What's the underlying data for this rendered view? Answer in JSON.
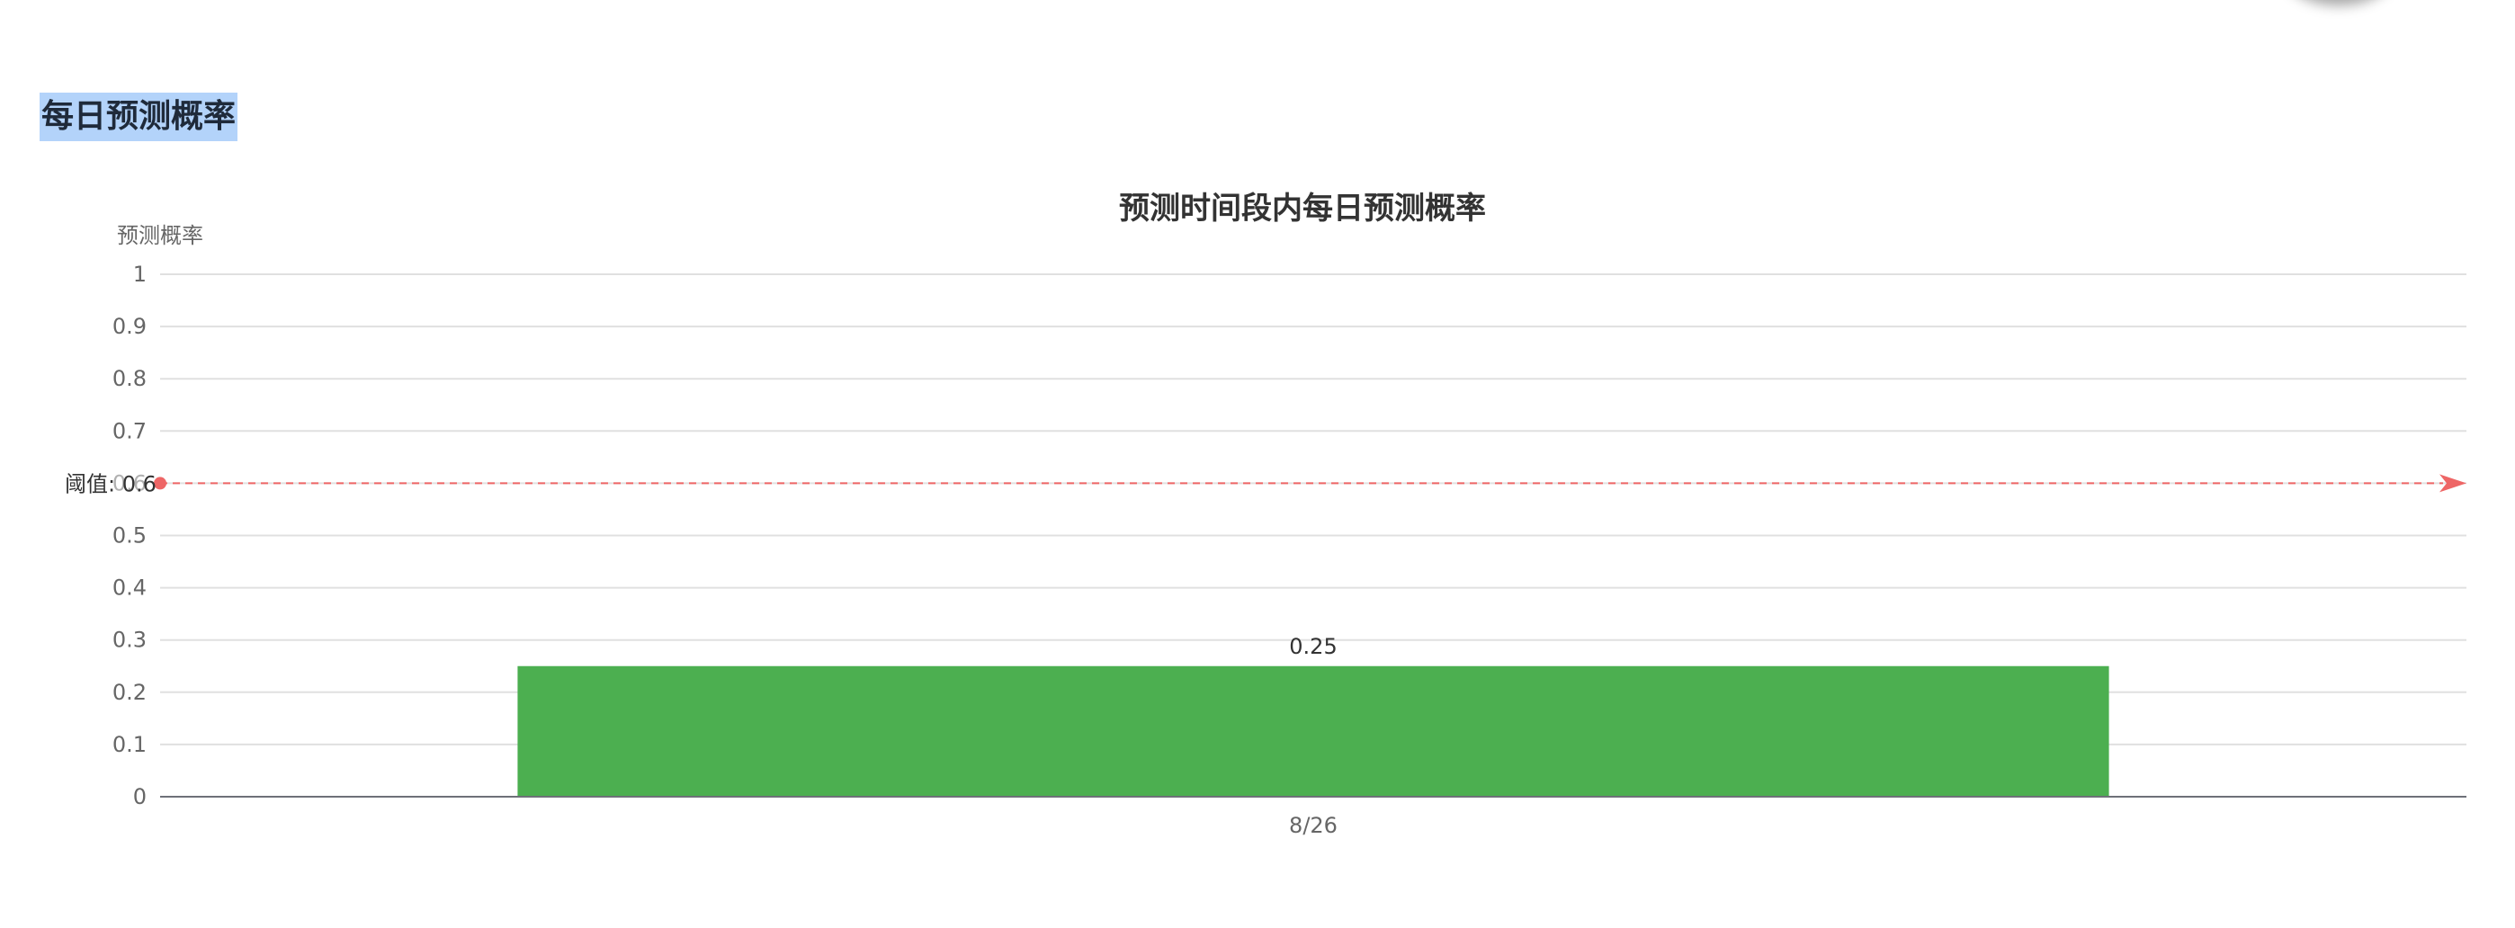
{
  "section": {
    "title": "每日预测概率"
  },
  "chart_data": {
    "type": "bar",
    "title": "预测时间段内每日预测概率",
    "xlabel": "",
    "ylabel": "预测概率",
    "categories": [
      "8/26"
    ],
    "values": [
      0.25
    ],
    "data_labels": [
      "0.25"
    ],
    "ylim": [
      0,
      1
    ],
    "yticks": [
      "0",
      "0.1",
      "0.2",
      "0.3",
      "0.4",
      "0.5",
      "0.6",
      "0.7",
      "0.8",
      "0.9",
      "1"
    ],
    "grid": true,
    "bar_color": "#4caf50",
    "threshold": {
      "label": "阈值: 0.6",
      "value": 0.6,
      "color": "#ee6666"
    }
  }
}
